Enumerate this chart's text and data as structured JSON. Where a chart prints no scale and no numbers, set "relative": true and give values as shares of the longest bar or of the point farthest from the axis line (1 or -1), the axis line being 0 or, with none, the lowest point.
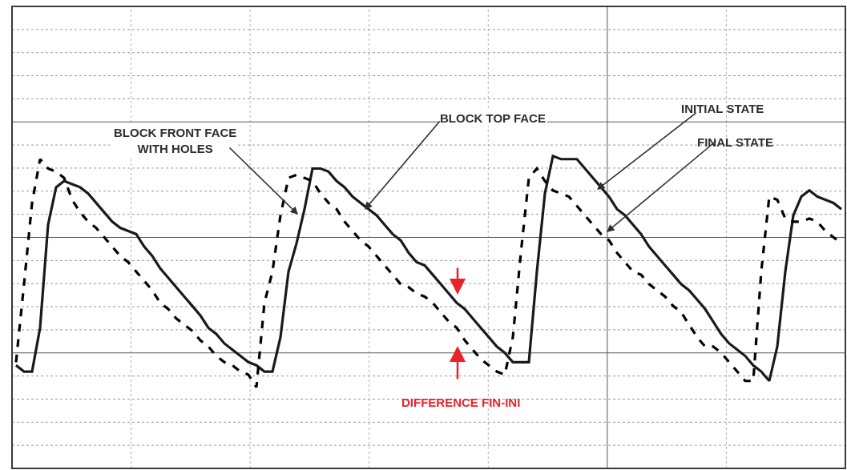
{
  "chart_data": {
    "type": "line",
    "relative": true,
    "grid": true,
    "marker": "none",
    "categories": [
      null,
      null,
      null,
      null,
      null,
      null,
      null,
      null,
      null,
      null,
      null,
      null,
      null,
      null,
      null,
      null,
      null,
      null,
      null,
      null,
      null,
      null,
      null,
      null,
      null,
      null,
      null,
      null,
      null,
      null,
      null,
      null,
      null,
      null,
      null,
      null,
      null,
      null,
      null,
      null,
      null,
      null,
      null,
      null,
      null,
      null,
      null,
      null,
      null,
      null,
      null,
      null,
      null,
      null,
      null,
      null,
      null,
      null,
      null,
      null,
      null,
      null,
      null,
      null,
      null,
      null,
      null,
      null,
      null,
      null,
      null,
      null,
      null,
      null,
      null,
      null,
      null,
      null,
      null,
      null,
      null,
      null,
      null,
      null,
      null,
      null,
      null,
      null,
      null,
      null,
      null,
      null,
      null,
      null,
      null,
      null,
      null,
      null,
      null,
      null,
      null,
      null,
      null,
      null
    ],
    "series": [
      {
        "color": "#1a1a1a",
        "line_style": "solid",
        "values": [
          0.33,
          0.31,
          0.31,
          0.45,
          0.78,
          0.9,
          0.92,
          0.91,
          0.9,
          0.88,
          0.85,
          0.82,
          0.79,
          0.77,
          0.76,
          0.75,
          0.71,
          0.68,
          0.64,
          0.61,
          0.58,
          0.55,
          0.52,
          0.49,
          0.45,
          0.43,
          0.4,
          0.38,
          0.36,
          0.34,
          0.33,
          0.31,
          0.31,
          0.42,
          0.63,
          0.72,
          0.83,
          0.96,
          0.96,
          0.95,
          0.92,
          0.9,
          0.87,
          0.85,
          0.83,
          0.81,
          0.78,
          0.75,
          0.73,
          0.69,
          0.66,
          0.65,
          0.62,
          0.59,
          0.56,
          0.53,
          0.51,
          0.48,
          0.45,
          0.42,
          0.39,
          0.37,
          0.34,
          0.34,
          0.34,
          0.63,
          0.88,
          1.0,
          0.99,
          0.99,
          0.99,
          0.96,
          0.93,
          0.9,
          0.87,
          0.83,
          0.81,
          0.78,
          0.75,
          0.71,
          0.68,
          0.65,
          0.62,
          0.59,
          0.57,
          0.54,
          0.51,
          0.47,
          0.43,
          0.4,
          0.38,
          0.36,
          0.33,
          0.31,
          0.28,
          0.39,
          0.63,
          0.81,
          0.87,
          0.89,
          0.87,
          0.86,
          0.85,
          0.83
        ]
      },
      {
        "color": "#000000",
        "line_style": "dashed",
        "values": [
          0.34,
          0.59,
          0.85,
          0.99,
          0.96,
          0.95,
          0.93,
          0.86,
          0.82,
          0.79,
          0.77,
          0.74,
          0.71,
          0.68,
          0.66,
          0.63,
          0.6,
          0.57,
          0.53,
          0.51,
          0.48,
          0.46,
          0.44,
          0.41,
          0.39,
          0.36,
          0.34,
          0.33,
          0.31,
          0.3,
          0.26,
          0.53,
          0.63,
          0.81,
          0.93,
          0.94,
          0.93,
          0.92,
          0.88,
          0.85,
          0.83,
          0.79,
          0.76,
          0.73,
          0.71,
          0.68,
          0.65,
          0.62,
          0.59,
          0.58,
          0.56,
          0.55,
          0.53,
          0.5,
          0.47,
          0.45,
          0.41,
          0.38,
          0.35,
          0.33,
          0.31,
          0.3,
          0.42,
          0.69,
          0.93,
          0.96,
          0.92,
          0.89,
          0.88,
          0.87,
          0.84,
          0.81,
          0.78,
          0.75,
          0.73,
          0.69,
          0.66,
          0.63,
          0.62,
          0.59,
          0.57,
          0.55,
          0.52,
          0.5,
          0.46,
          0.42,
          0.39,
          0.39,
          0.37,
          0.34,
          0.31,
          0.28,
          0.28,
          0.63,
          0.87,
          0.86,
          0.8,
          0.79,
          0.79,
          0.8,
          0.79,
          0.76,
          0.74,
          0.72
        ]
      }
    ],
    "annotations": [
      "BLOCK FRONT FACE\nWITH HOLES",
      "BLOCK TOP FACE",
      "INITIAL STATE",
      "FINAL STATE",
      "DIFFERENCE FIN-INI"
    ]
  }
}
